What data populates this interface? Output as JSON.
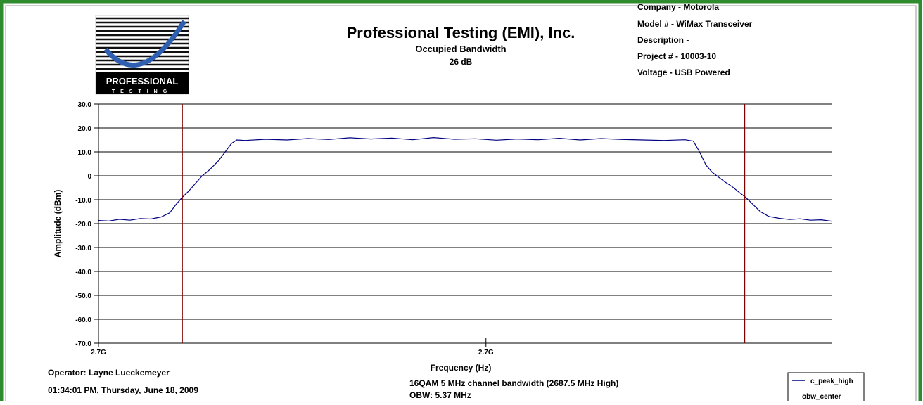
{
  "logo": {
    "line1": "PROFESSIONAL",
    "line2": "TESTING"
  },
  "header": {
    "company_name": "Professional Testing (EMI), Inc.",
    "test": "Occupied Bandwidth",
    "level": "26 dB"
  },
  "info": [
    "Company - Motorola",
    "Model # - WiMax Transceiver",
    "Description -",
    "Project # - 10003-10",
    "Voltage - USB Powered"
  ],
  "footer": {
    "operator": "Operator: Layne Lueckemeyer",
    "timestamp": "01:34:01 PM, Thursday, June 18, 2009",
    "note": "16QAM 5 MHz channel bandwidth (2687.5 MHz High)",
    "obw": "OBW: 5.37 MHz"
  },
  "chart_data": {
    "type": "line",
    "x_label": "Frequency (Hz)",
    "y_label": "Amplitude (dBm)",
    "xlim": [
      2684000000,
      2691000000
    ],
    "xticks": [
      {
        "value": 2684000000,
        "label": "2.7G"
      },
      {
        "value": 2687700000,
        "label": "2.7G"
      }
    ],
    "ylim": [
      -70,
      30
    ],
    "yticks": [
      {
        "value": 30,
        "label": "30.0"
      },
      {
        "value": 20,
        "label": "20.0"
      },
      {
        "value": 10,
        "label": "10.0"
      },
      0,
      {
        "value": -10,
        "label": "-10.0"
      },
      {
        "value": -20,
        "label": "-20.0"
      },
      {
        "value": -30,
        "label": "-30.0"
      },
      {
        "value": -40,
        "label": "-40.0"
      },
      {
        "value": -50,
        "label": "-50.0"
      },
      {
        "value": -60,
        "label": "-60.0"
      },
      {
        "value": -70,
        "label": "-70.0"
      }
    ],
    "grid": true,
    "legend": "bottom-right",
    "series": [
      {
        "name": "c_peak_high",
        "color": "#000080",
        "x": [
          2684000000,
          2684100000,
          2684200000,
          2684300000,
          2684400000,
          2684500000,
          2684600000,
          2684680000,
          2684740000,
          2684800000,
          2684860000,
          2684920000,
          2684990000,
          2685060000,
          2685140000,
          2685210000,
          2685270000,
          2685320000,
          2685400000,
          2685600000,
          2685800000,
          2686000000,
          2686200000,
          2686400000,
          2686600000,
          2686800000,
          2687000000,
          2687200000,
          2687400000,
          2687600000,
          2687800000,
          2688000000,
          2688200000,
          2688400000,
          2688600000,
          2688800000,
          2689000000,
          2689200000,
          2689400000,
          2689600000,
          2689680000,
          2689740000,
          2689800000,
          2689860000,
          2689920000,
          2689980000,
          2690050000,
          2690120000,
          2690180000,
          2690250000,
          2690320000,
          2690400000,
          2690500000,
          2690600000,
          2690700000,
          2690800000,
          2690900000,
          2691000000
        ],
        "values": [
          -18.7,
          -18.9,
          -18.2,
          -18.6,
          -17.9,
          -18.1,
          -17.2,
          -15.5,
          -12.0,
          -9.0,
          -6.5,
          -3.5,
          0.0,
          2.5,
          6.0,
          10.0,
          13.5,
          15.0,
          14.8,
          15.3,
          15.0,
          15.6,
          15.2,
          15.9,
          15.4,
          15.8,
          15.1,
          16.0,
          15.3,
          15.5,
          14.9,
          15.4,
          15.1,
          15.7,
          15.0,
          15.6,
          15.2,
          15.0,
          14.8,
          15.1,
          14.5,
          10.0,
          4.5,
          1.5,
          -0.5,
          -2.5,
          -4.5,
          -7.0,
          -9.0,
          -12.0,
          -15.0,
          -17.0,
          -17.8,
          -18.3,
          -18.0,
          -18.6,
          -18.4,
          -19.0
        ]
      },
      {
        "name": "obw_center",
        "color": "#800000",
        "style": "vline",
        "x": [
          2684800000,
          2690170000
        ]
      }
    ]
  }
}
